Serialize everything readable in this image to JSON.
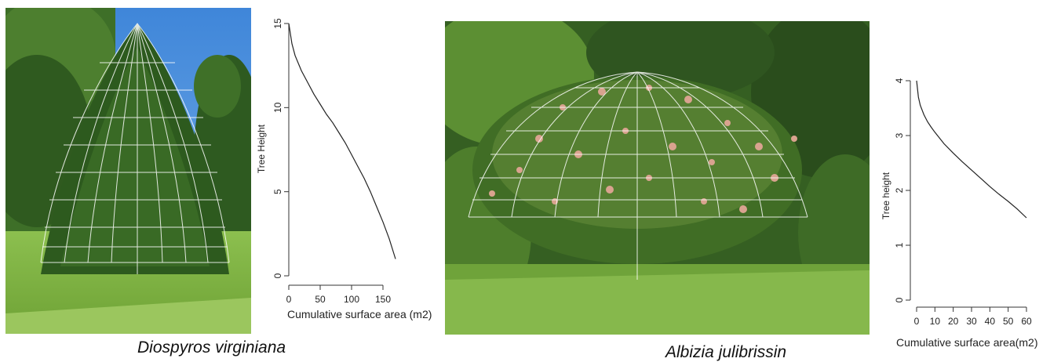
{
  "photos": {
    "left": {
      "wireframe_shape": "cone",
      "dominant_colors": [
        "#2f5a1f",
        "#4e8a2c",
        "#8fb854",
        "#4a90e2"
      ]
    },
    "right": {
      "wireframe_shape": "dome",
      "dominant_colors": [
        "#2a4a1c",
        "#4b7a2a",
        "#d9a38f",
        "#6fa33a"
      ]
    }
  },
  "captions": {
    "left": "Diospyros virginiana",
    "right": "Albizia julibrissin"
  },
  "chart_data": [
    {
      "type": "line",
      "title": "",
      "xlabel": "Cumulative surface area (m2)",
      "ylabel": "Tree Height",
      "xlim": [
        0,
        170
      ],
      "ylim": [
        0,
        15
      ],
      "xticks": [
        0,
        50,
        100,
        150
      ],
      "yticks": [
        0,
        5,
        10,
        15
      ],
      "grid": false,
      "series": [
        {
          "x": [
            0,
            5,
            10,
            20,
            30,
            40,
            50,
            60,
            70,
            80,
            90,
            100,
            110,
            120,
            130,
            140,
            150,
            160,
            170
          ],
          "y": [
            15,
            13.8,
            13.1,
            12.2,
            11.5,
            10.8,
            10.2,
            9.6,
            9.1,
            8.5,
            7.9,
            7.2,
            6.5,
            5.8,
            5.0,
            4.1,
            3.2,
            2.2,
            1.0
          ]
        }
      ]
    },
    {
      "type": "line",
      "title": "",
      "xlabel": "Cumulative surface area(m2)",
      "ylabel": "Tree height",
      "xlim": [
        0,
        60
      ],
      "ylim": [
        0,
        4
      ],
      "xticks": [
        0,
        10,
        20,
        30,
        40,
        50,
        60
      ],
      "yticks": [
        0,
        1,
        2,
        3,
        4
      ],
      "grid": false,
      "series": [
        {
          "x": [
            0,
            1,
            2,
            4,
            6,
            8,
            10,
            15,
            20,
            25,
            30,
            35,
            40,
            45,
            50,
            55,
            60
          ],
          "y": [
            4.0,
            3.7,
            3.55,
            3.38,
            3.25,
            3.15,
            3.06,
            2.85,
            2.68,
            2.52,
            2.37,
            2.22,
            2.07,
            1.93,
            1.8,
            1.66,
            1.5
          ]
        }
      ]
    }
  ]
}
